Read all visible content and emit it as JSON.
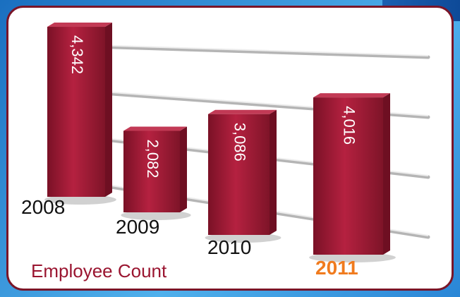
{
  "chart_data": {
    "type": "bar",
    "categories": [
      "2008",
      "2009",
      "2010",
      "2011"
    ],
    "values": [
      4342,
      2082,
      3086,
      4016
    ],
    "value_labels": [
      "4,342",
      "2,082",
      "3,086",
      "4,016"
    ],
    "highlight_category": "2011",
    "title": "",
    "caption": "Employee Count",
    "grid": true,
    "legend": "none"
  },
  "colors": {
    "bar": "#9b1a32",
    "bar_dark": "#6e0f22",
    "bar_top": "#c23a55",
    "frame_border": "#7a1528",
    "highlight": "#f07b1e",
    "grid": "#bdbdbd"
  }
}
